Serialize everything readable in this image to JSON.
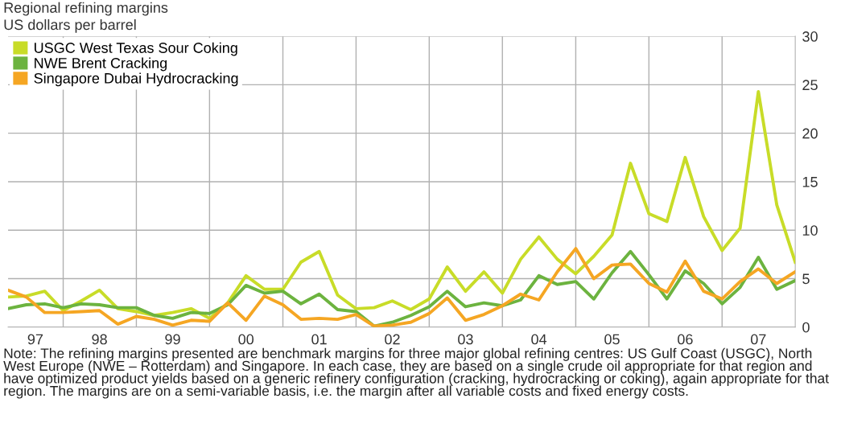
{
  "chart_data": {
    "type": "line",
    "title": "Regional refining margins",
    "subtitle": "US dollars per barrel",
    "x": [
      "1997-04",
      "1997-07",
      "1997-10",
      "1998-01",
      "1998-04",
      "1998-07",
      "1998-10",
      "1999-01",
      "1999-04",
      "1999-07",
      "1999-10",
      "2000-01",
      "2000-04",
      "2000-07",
      "2000-10",
      "2001-01",
      "2001-04",
      "2001-07",
      "2001-10",
      "2002-01",
      "2002-04",
      "2002-07",
      "2002-10",
      "2003-01",
      "2003-04",
      "2003-07",
      "2003-10",
      "2004-01",
      "2004-04",
      "2004-07",
      "2004-10",
      "2005-01",
      "2005-04",
      "2005-07",
      "2005-10",
      "2006-01",
      "2006-04",
      "2006-07",
      "2006-10",
      "2007-01",
      "2007-04",
      "2007-07",
      "2007-10",
      "2008-01"
    ],
    "series": [
      {
        "name": "USGC West Texas Sour Coking",
        "color": "#c8dc28",
        "values": [
          3.1,
          3.2,
          3.7,
          1.7,
          2.7,
          3.8,
          1.9,
          1.6,
          1.2,
          1.5,
          1.9,
          0.9,
          2.5,
          5.3,
          3.9,
          3.9,
          6.7,
          7.8,
          3.3,
          1.9,
          2.0,
          2.7,
          1.8,
          2.9,
          6.2,
          3.7,
          5.7,
          3.5,
          7.0,
          9.3,
          7.0,
          5.5,
          7.3,
          9.5,
          16.9,
          11.7,
          10.9,
          17.5,
          11.4,
          7.9,
          10.2,
          24.3,
          12.6,
          6.7
        ]
      },
      {
        "name": "NWE Brent Cracking",
        "color": "#6cb33f",
        "values": [
          1.9,
          2.3,
          2.4,
          2.0,
          2.4,
          2.3,
          2.0,
          2.0,
          1.2,
          0.9,
          1.5,
          1.4,
          2.3,
          4.3,
          3.5,
          3.7,
          2.4,
          3.4,
          1.8,
          1.6,
          0.1,
          0.5,
          1.2,
          2.1,
          3.7,
          2.1,
          2.5,
          2.2,
          2.8,
          5.3,
          4.4,
          4.7,
          2.9,
          5.6,
          7.8,
          5.4,
          2.9,
          5.8,
          4.5,
          2.4,
          4.1,
          7.2,
          3.9,
          4.8
        ]
      },
      {
        "name": "Singapore Dubai Hydrocracking",
        "color": "#f5a623",
        "values": [
          3.8,
          3.1,
          1.5,
          1.5,
          1.6,
          1.7,
          0.3,
          1.1,
          0.8,
          0.2,
          0.7,
          0.6,
          2.5,
          0.7,
          3.2,
          2.3,
          0.8,
          0.9,
          0.8,
          1.3,
          0.1,
          0.2,
          0.5,
          1.4,
          3.0,
          0.7,
          1.3,
          2.2,
          3.4,
          2.8,
          5.7,
          8.1,
          5.0,
          6.4,
          6.5,
          4.5,
          3.6,
          6.8,
          3.7,
          2.9,
          4.7,
          6.0,
          4.5,
          5.7
        ]
      }
    ],
    "xlim": [
      "1997-04",
      "2008-01"
    ],
    "xticks": [
      {
        "value": "1997-08-15",
        "label": "97"
      },
      {
        "value": "1998-01",
        "label": null
      },
      {
        "value": "1998-07",
        "label": "98"
      },
      {
        "value": "1999-01",
        "label": null
      },
      {
        "value": "1999-07",
        "label": "99"
      },
      {
        "value": "2000-01",
        "label": null
      },
      {
        "value": "2000-07",
        "label": "00"
      },
      {
        "value": "2001-01",
        "label": null
      },
      {
        "value": "2001-07",
        "label": "01"
      },
      {
        "value": "2002-01",
        "label": null
      },
      {
        "value": "2002-07",
        "label": "02"
      },
      {
        "value": "2003-01",
        "label": null
      },
      {
        "value": "2003-07",
        "label": "03"
      },
      {
        "value": "2004-01",
        "label": null
      },
      {
        "value": "2004-07",
        "label": "04"
      },
      {
        "value": "2005-01",
        "label": null
      },
      {
        "value": "2005-07",
        "label": "05"
      },
      {
        "value": "2006-01",
        "label": null
      },
      {
        "value": "2006-07",
        "label": "06"
      },
      {
        "value": "2007-01",
        "label": null
      },
      {
        "value": "2007-07",
        "label": "07"
      }
    ],
    "ylim": [
      0,
      30
    ],
    "yticks": [
      0,
      5,
      10,
      15,
      20,
      25,
      30
    ],
    "grid": true,
    "legend": "top left",
    "annotations": [
      "Note: The refining margins presented are benchmark margins for three major global refining centres: US Gulf Coast (USGC), North West Europe (NWE – Rotterdam) and Singapore. In each case, they are based on a single crude oil appropriate for that region and have optimized product yields based on a generic refinery configuration (cracking, hydrocracking or coking), again appropriate for that region. The margins are on a semi-variable basis, i.e. the margin after all variable costs and fixed energy costs."
    ]
  }
}
